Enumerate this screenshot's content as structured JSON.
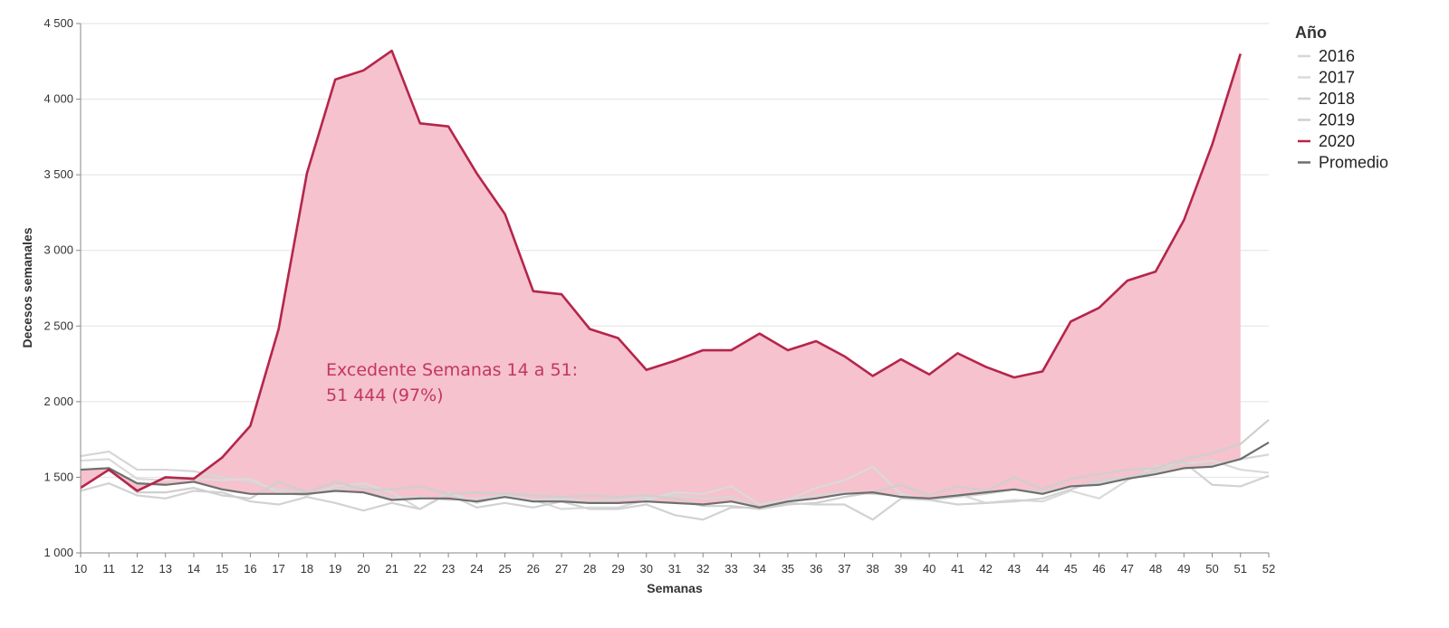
{
  "chart_data": {
    "type": "line",
    "title": "",
    "xlabel": "Semanas",
    "ylabel": "Decesos semanales",
    "xlim": [
      10,
      52
    ],
    "ylim": [
      1000,
      4500
    ],
    "y_ticks": [
      1000,
      1500,
      2000,
      2500,
      3000,
      3500,
      4000,
      4500
    ],
    "y_tick_labels": [
      "1 000",
      "1 500",
      "2 000",
      "2 500",
      "3 000",
      "3 500",
      "4 000",
      "4 500"
    ],
    "x_ticks": [
      10,
      11,
      12,
      13,
      14,
      15,
      16,
      17,
      18,
      19,
      20,
      21,
      22,
      23,
      24,
      25,
      26,
      27,
      28,
      29,
      30,
      31,
      32,
      33,
      34,
      35,
      36,
      37,
      38,
      39,
      40,
      41,
      42,
      43,
      44,
      45,
      46,
      47,
      48,
      49,
      50,
      51,
      52
    ],
    "x_tick_labels": [
      "10",
      "11",
      "12",
      "13",
      "14",
      "15",
      "16",
      "17",
      "18",
      "19",
      "20",
      "21",
      "22",
      "23",
      "24",
      "25",
      "26",
      "27",
      "28",
      "29",
      "30",
      "31",
      "32",
      "33",
      "34",
      "35",
      "36",
      "37",
      "38",
      "39",
      "40",
      "41",
      "42",
      "43",
      "44",
      "45",
      "46",
      "47",
      "48",
      "49",
      "50",
      "51",
      "52"
    ],
    "grid": true,
    "legend": {
      "title": "Año",
      "position": "right"
    },
    "series": [
      {
        "name": "2016",
        "color": "#d6d6d6",
        "x": [
          10,
          11,
          12,
          13,
          14,
          15,
          16,
          17,
          18,
          19,
          20,
          21,
          22,
          23,
          24,
          25,
          26,
          27,
          28,
          29,
          30,
          31,
          32,
          33,
          34,
          35,
          36,
          37,
          38,
          39,
          40,
          41,
          42,
          43,
          44,
          45,
          46,
          47,
          48,
          49,
          50,
          51,
          52
        ],
        "values": [
          1640,
          1670,
          1550,
          1550,
          1540,
          1500,
          1470,
          1420,
          1390,
          1420,
          1440,
          1360,
          1370,
          1350,
          1360,
          1380,
          1350,
          1360,
          1340,
          1350,
          1370,
          1380,
          1360,
          1370,
          1300,
          1350,
          1380,
          1400,
          1390,
          1380,
          1350,
          1370,
          1390,
          1420,
          1400,
          1440,
          1460,
          1500,
          1530,
          1560,
          1580,
          1620,
          1650
        ]
      },
      {
        "name": "2017",
        "color": "#dadada",
        "x": [
          10,
          11,
          12,
          13,
          14,
          15,
          16,
          17,
          18,
          19,
          20,
          21,
          22,
          23,
          24,
          25,
          26,
          27,
          28,
          29,
          30,
          31,
          32,
          33,
          34,
          35,
          36,
          37,
          38,
          39,
          40,
          41,
          42,
          43,
          44,
          45,
          46,
          47,
          48,
          49,
          50,
          51,
          52
        ],
        "values": [
          1610,
          1620,
          1490,
          1480,
          1490,
          1480,
          1490,
          1400,
          1380,
          1440,
          1460,
          1400,
          1290,
          1400,
          1330,
          1380,
          1350,
          1290,
          1300,
          1300,
          1350,
          1400,
          1390,
          1440,
          1320,
          1350,
          1430,
          1480,
          1570,
          1390,
          1350,
          1390,
          1330,
          1350,
          1340,
          1410,
          1360,
          1480,
          1570,
          1590,
          1610,
          1550,
          1530
        ]
      },
      {
        "name": "2018",
        "color": "#d2d2d2",
        "x": [
          10,
          11,
          12,
          13,
          14,
          15,
          16,
          17,
          18,
          19,
          20,
          21,
          22,
          23,
          24,
          25,
          26,
          27,
          28,
          29,
          30,
          31,
          32,
          33,
          34,
          35,
          36,
          37,
          38,
          39,
          40,
          41,
          42,
          43,
          44,
          45,
          46,
          47,
          48,
          49,
          50,
          51,
          52
        ],
        "values": [
          1410,
          1460,
          1380,
          1360,
          1410,
          1400,
          1340,
          1320,
          1370,
          1330,
          1280,
          1330,
          1290,
          1390,
          1300,
          1330,
          1300,
          1340,
          1290,
          1290,
          1320,
          1250,
          1220,
          1300,
          1300,
          1330,
          1320,
          1320,
          1220,
          1360,
          1350,
          1320,
          1330,
          1340,
          1360,
          1420,
          1480,
          1500,
          1540,
          1600,
          1450,
          1440,
          1510
        ]
      },
      {
        "name": "2019",
        "color": "#cfcfcf",
        "x": [
          10,
          11,
          12,
          13,
          14,
          15,
          16,
          17,
          18,
          19,
          20,
          21,
          22,
          23,
          24,
          25,
          26,
          27,
          28,
          29,
          30,
          31,
          32,
          33,
          34,
          35,
          36,
          37,
          38,
          39,
          40,
          41,
          42,
          43,
          44,
          45,
          46,
          47,
          48,
          49,
          50,
          51,
          52
        ],
        "values": [
          1550,
          1560,
          1400,
          1400,
          1430,
          1380,
          1360,
          1470,
          1400,
          1470,
          1420,
          1420,
          1440,
          1390,
          1400,
          1390,
          1380,
          1370,
          1380,
          1370,
          1380,
          1360,
          1310,
          1310,
          1290,
          1320,
          1330,
          1370,
          1400,
          1450,
          1380,
          1440,
          1410,
          1500,
          1420,
          1490,
          1520,
          1550,
          1560,
          1620,
          1660,
          1720,
          1880
        ]
      },
      {
        "name": "2020",
        "color": "#b5254b",
        "x": [
          10,
          11,
          12,
          13,
          14,
          15,
          16,
          17,
          18,
          19,
          20,
          21,
          22,
          23,
          24,
          25,
          26,
          27,
          28,
          29,
          30,
          31,
          32,
          33,
          34,
          35,
          36,
          37,
          38,
          39,
          40,
          41,
          42,
          43,
          44,
          45,
          46,
          47,
          48,
          49,
          50,
          51
        ],
        "values": [
          1430,
          1550,
          1410,
          1500,
          1490,
          1630,
          1840,
          2480,
          3510,
          4130,
          4190,
          4320,
          3840,
          3820,
          3510,
          3240,
          2730,
          2710,
          2480,
          2420,
          2210,
          2270,
          2340,
          2340,
          2450,
          2340,
          2400,
          2300,
          2170,
          2280,
          2180,
          2320,
          2230,
          2160,
          2200,
          2530,
          2620,
          2800,
          2860,
          3200,
          3700,
          4300
        ]
      },
      {
        "name": "Promedio",
        "color": "#6e6e6e",
        "x": [
          10,
          11,
          12,
          13,
          14,
          15,
          16,
          17,
          18,
          19,
          20,
          21,
          22,
          23,
          24,
          25,
          26,
          27,
          28,
          29,
          30,
          31,
          32,
          33,
          34,
          35,
          36,
          37,
          38,
          39,
          40,
          41,
          42,
          43,
          44,
          45,
          46,
          47,
          48,
          49,
          50,
          51,
          52
        ],
        "values": [
          1550,
          1560,
          1460,
          1450,
          1470,
          1420,
          1390,
          1390,
          1390,
          1410,
          1400,
          1350,
          1360,
          1360,
          1340,
          1370,
          1340,
          1340,
          1330,
          1330,
          1340,
          1330,
          1320,
          1340,
          1300,
          1340,
          1360,
          1390,
          1400,
          1370,
          1360,
          1380,
          1400,
          1420,
          1390,
          1440,
          1450,
          1490,
          1520,
          1560,
          1570,
          1620,
          1730
        ]
      }
    ],
    "excess_area": {
      "from_series": "Promedio",
      "to_series": "2020",
      "fill": "#f5c2cd"
    },
    "annotation": {
      "lines": [
        "Excedente Semanas 14 a 51:",
        " 51 444 (97%)"
      ],
      "color": "#c43660"
    }
  }
}
